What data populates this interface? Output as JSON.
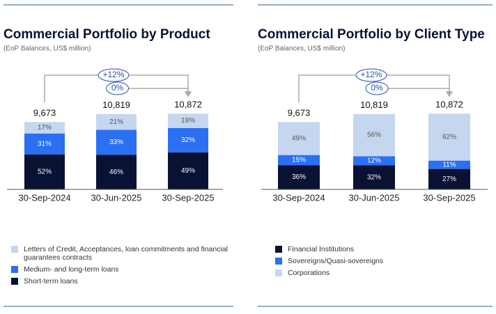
{
  "chart_data": [
    {
      "type": "stacked-bar",
      "title": "Commercial Portfolio by Product",
      "subtitle": "(EoP Balances, US$ million)",
      "categories": [
        "30-Sep-2024",
        "30-Jun-2025",
        "30-Sep-2025"
      ],
      "totals": {
        "values": [
          9673,
          10819,
          10872
        ],
        "value_labels": [
          "9,673",
          "10,819",
          "10,872"
        ]
      },
      "annotations": [
        "+12%",
        "0%"
      ],
      "legend_reversed": true,
      "series": [
        {
          "name": "Letters of Credit, Acceptances, loan commitments and financial guarantees contracts",
          "color": "#c5d6ef",
          "values": [
            17,
            21,
            19
          ],
          "value_labels": [
            "17%",
            "21%",
            "19%"
          ]
        },
        {
          "name": "Medium- and long-term loans",
          "color": "#2b6ff2",
          "values": [
            31,
            33,
            32
          ],
          "value_labels": [
            "31%",
            "33%",
            "32%"
          ]
        },
        {
          "name": "Short-term loans",
          "color": "#0a1233",
          "values": [
            52,
            46,
            49
          ],
          "value_labels": [
            "52%",
            "46%",
            "49%"
          ]
        }
      ]
    },
    {
      "type": "stacked-bar",
      "title": "Commercial Portfolio by Client Type",
      "subtitle": "(EoP Balances, US$ million)",
      "categories": [
        "30-Sep-2024",
        "30-Jun-2025",
        "30-Sep-2025"
      ],
      "totals": {
        "values": [
          9673,
          10819,
          10872
        ],
        "value_labels": [
          "9,673",
          "10,819",
          "10,872"
        ]
      },
      "annotations": [
        "+12%",
        "0%"
      ],
      "legend_reversed": false,
      "series": [
        {
          "name": "Financial Institutions",
          "color": "#0a1233",
          "values": [
            36,
            32,
            27
          ],
          "value_labels": [
            "36%",
            "32%",
            "27%"
          ]
        },
        {
          "name": "Sovereigns/Quasi-sovereigns",
          "color": "#2b6ff2",
          "values": [
            15,
            12,
            11
          ],
          "value_labels": [
            "15%",
            "12%",
            "11%"
          ]
        },
        {
          "name": "Corporations",
          "color": "#c5d6ef",
          "values": [
            49,
            56,
            62
          ],
          "value_labels": [
            "49%",
            "56%",
            "62%"
          ]
        }
      ]
    }
  ]
}
